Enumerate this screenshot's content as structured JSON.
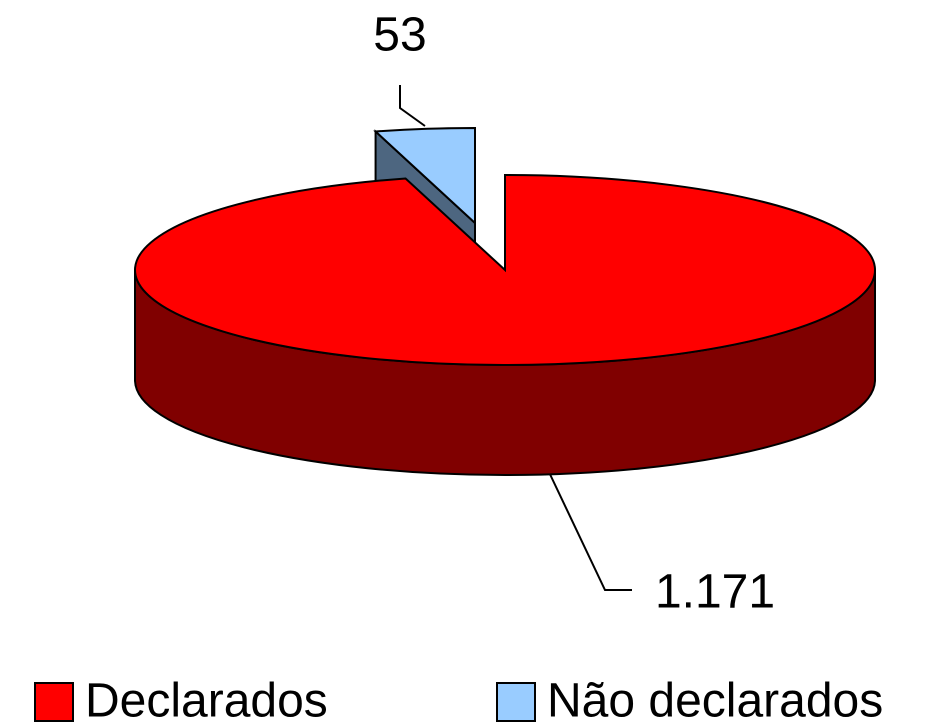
{
  "chart_data": {
    "type": "pie",
    "categories": [
      "Declarados",
      "Não declarados"
    ],
    "values": [
      1171,
      53
    ],
    "value_labels": [
      "1.171",
      "53"
    ],
    "colors": [
      "#ff0000",
      "#99ccff"
    ]
  }
}
